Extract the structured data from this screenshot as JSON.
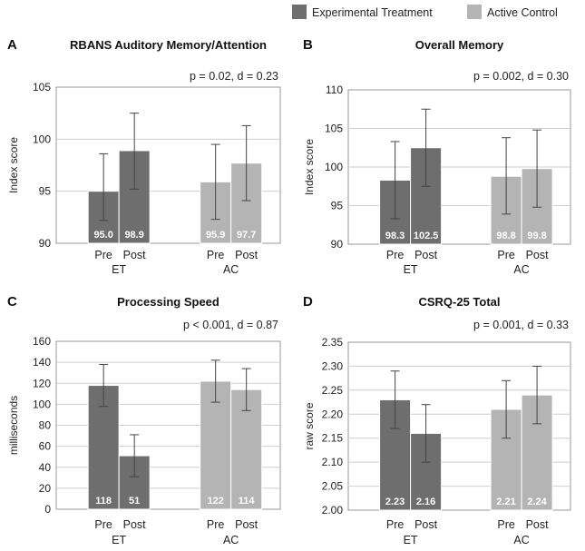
{
  "legend": {
    "items": [
      {
        "label": "Experimental Treatment",
        "color": "#6e6e6e"
      },
      {
        "label": "Active Control",
        "color": "#b4b4b4"
      }
    ]
  },
  "chart_data": [
    {
      "type": "bar",
      "panel": "A",
      "title": "RBANS Auditory Memory/Attention",
      "stat": "p = 0.02, d = 0.23",
      "ylabel": "Index score",
      "ylim": [
        90,
        105
      ],
      "yticks": [
        90,
        95,
        100,
        105
      ],
      "groups": [
        "ET",
        "AC"
      ],
      "categories": [
        "Pre",
        "Post"
      ],
      "series": [
        {
          "name": "Experimental Treatment",
          "group": "ET",
          "values": [
            95.0,
            98.9
          ],
          "labels": [
            "95.0",
            "98.9"
          ],
          "err_low": [
            92.2,
            95.2
          ],
          "err_high": [
            98.6,
            102.5
          ]
        },
        {
          "name": "Active Control",
          "group": "AC",
          "values": [
            95.9,
            97.7
          ],
          "labels": [
            "95.9",
            "97.7"
          ],
          "err_low": [
            92.3,
            94.1
          ],
          "err_high": [
            99.5,
            101.3
          ]
        }
      ],
      "grid": true
    },
    {
      "type": "bar",
      "panel": "B",
      "title": "Overall Memory",
      "stat": "p = 0.002, d = 0.30",
      "ylabel": "Index score",
      "ylim": [
        90,
        110
      ],
      "yticks": [
        90,
        95,
        100,
        105,
        110
      ],
      "groups": [
        "ET",
        "AC"
      ],
      "categories": [
        "Pre",
        "Post"
      ],
      "series": [
        {
          "name": "Experimental Treatment",
          "group": "ET",
          "values": [
            98.3,
            102.5
          ],
          "labels": [
            "98.3",
            "102.5"
          ],
          "err_low": [
            93.3,
            97.5
          ],
          "err_high": [
            103.3,
            107.5
          ]
        },
        {
          "name": "Active Control",
          "group": "AC",
          "values": [
            98.8,
            99.8
          ],
          "labels": [
            "98.8",
            "99.8"
          ],
          "err_low": [
            93.9,
            94.8
          ],
          "err_high": [
            103.8,
            104.8
          ]
        }
      ],
      "grid": true
    },
    {
      "type": "bar",
      "panel": "C",
      "title": "Processing Speed",
      "stat": "p < 0.001, d = 0.87",
      "ylabel": "milliseconds",
      "ylim": [
        0,
        160
      ],
      "yticks": [
        0,
        20,
        40,
        60,
        80,
        100,
        120,
        140,
        160
      ],
      "groups": [
        "ET",
        "AC"
      ],
      "categories": [
        "Pre",
        "Post"
      ],
      "series": [
        {
          "name": "Experimental Treatment",
          "group": "ET",
          "values": [
            118,
            51
          ],
          "labels": [
            "118",
            "51"
          ],
          "err_low": [
            98,
            31
          ],
          "err_high": [
            138,
            71
          ]
        },
        {
          "name": "Active Control",
          "group": "AC",
          "values": [
            122,
            114
          ],
          "labels": [
            "122",
            "114"
          ],
          "err_low": [
            102,
            94
          ],
          "err_high": [
            142,
            134
          ]
        }
      ],
      "grid": true
    },
    {
      "type": "bar",
      "panel": "D",
      "title": "CSRQ-25 Total",
      "stat": "p = 0.001, d = 0.33",
      "ylabel": "raw score",
      "ylim": [
        2.0,
        2.35
      ],
      "yticks": [
        "2.00",
        "2.05",
        "2.10",
        "2.15",
        "2.20",
        "2.25",
        "2.30",
        "2.35"
      ],
      "groups": [
        "ET",
        "AC"
      ],
      "categories": [
        "Pre",
        "Post"
      ],
      "series": [
        {
          "name": "Experimental Treatment",
          "group": "ET",
          "values": [
            2.23,
            2.16
          ],
          "labels": [
            "2.23",
            "2.16"
          ],
          "err_low": [
            2.17,
            2.1
          ],
          "err_high": [
            2.29,
            2.22
          ]
        },
        {
          "name": "Active Control",
          "group": "AC",
          "values": [
            2.21,
            2.24
          ],
          "labels": [
            "2.21",
            "2.24"
          ],
          "err_low": [
            2.15,
            2.18
          ],
          "err_high": [
            2.27,
            2.3
          ]
        }
      ],
      "grid": true
    }
  ]
}
